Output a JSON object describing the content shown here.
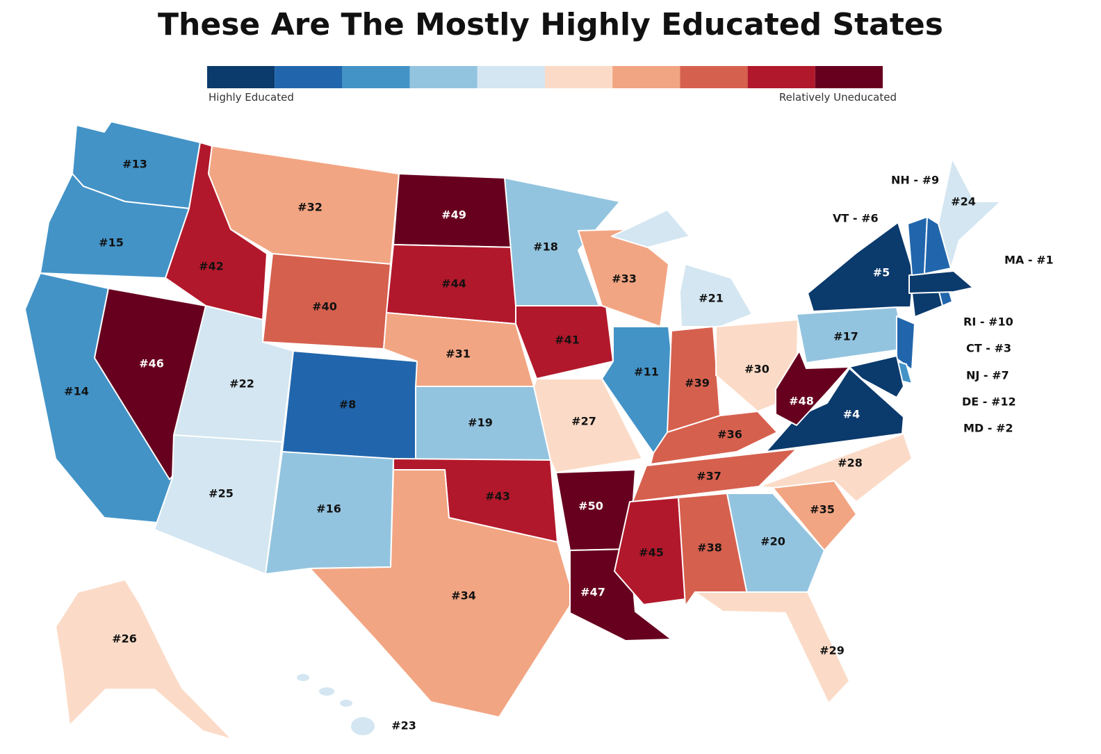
{
  "title": "These Are The Mostly Highly Educated States",
  "legend": {
    "colors": [
      "#0b3a6c",
      "#2166ac",
      "#4393c7",
      "#93c4df",
      "#d3e6f1",
      "#fbdbc7",
      "#f2a582",
      "#d6604e",
      "#b2182b",
      "#67001f"
    ],
    "low_label": "Highly Educated",
    "high_label": "Relatively Uneducated"
  },
  "states": [
    {
      "label": "#13",
      "color": "#4393c7"
    },
    {
      "label": "#15",
      "color": "#4393c7"
    },
    {
      "label": "#14",
      "color": "#4393c7"
    },
    {
      "label": "#46",
      "color": "#67001f"
    },
    {
      "label": "#42",
      "color": "#b2182b"
    },
    {
      "label": "#32",
      "color": "#f2a582"
    },
    {
      "label": "#40",
      "color": "#d6604e"
    },
    {
      "label": "#22",
      "color": "#d3e6f1"
    },
    {
      "label": "#8",
      "color": "#2166ac"
    },
    {
      "label": "#25",
      "color": "#d3e6f1"
    },
    {
      "label": "#16",
      "color": "#93c4df"
    },
    {
      "label": "#49",
      "color": "#67001f"
    },
    {
      "label": "#44",
      "color": "#b2182b"
    },
    {
      "label": "#31",
      "color": "#f2a582"
    },
    {
      "label": "#19",
      "color": "#93c4df"
    },
    {
      "label": "#43",
      "color": "#b2182b"
    },
    {
      "label": "#34",
      "color": "#f2a582"
    },
    {
      "label": "#18",
      "color": "#93c4df"
    },
    {
      "label": "#41",
      "color": "#b2182b"
    },
    {
      "label": "#27",
      "color": "#fbdbc7"
    },
    {
      "label": "#50",
      "color": "#67001f"
    },
    {
      "label": "#47",
      "color": "#67001f"
    },
    {
      "label": "#33",
      "color": "#f2a582"
    },
    {
      "label": "#11",
      "color": "#4393c7"
    },
    {
      "label": "#21",
      "color": "#d3e6f1"
    },
    {
      "label": "#39",
      "color": "#d6604e"
    },
    {
      "label": "#30",
      "color": "#fbdbc7"
    },
    {
      "label": "#36",
      "color": "#d6604e"
    },
    {
      "label": "#37",
      "color": "#d6604e"
    },
    {
      "label": "#45",
      "color": "#b2182b"
    },
    {
      "label": "#38",
      "color": "#d6604e"
    },
    {
      "label": "#20",
      "color": "#93c4df"
    },
    {
      "label": "#29",
      "color": "#fbdbc7"
    },
    {
      "label": "#35",
      "color": "#f2a582"
    },
    {
      "label": "#28",
      "color": "#fbdbc7"
    },
    {
      "label": "#4",
      "color": "#0b3a6c"
    },
    {
      "label": "#48",
      "color": "#67001f"
    },
    {
      "label": "#17",
      "color": "#93c4df"
    },
    {
      "label": "#5",
      "color": "#0b3a6c"
    },
    {
      "label": "NJ - #7",
      "color": "#2166ac"
    },
    {
      "label": "DE - #12",
      "color": "#4393c7"
    },
    {
      "label": "MD - #2",
      "color": "#0b3a6c"
    },
    {
      "label": "CT - #3",
      "color": "#0b3a6c"
    },
    {
      "label": "RI - #10",
      "color": "#2166ac"
    },
    {
      "label": "MA - #1",
      "color": "#0b3a6c"
    },
    {
      "label": "VT - #6",
      "color": "#2166ac"
    },
    {
      "label": "NH - #9",
      "color": "#2166ac"
    },
    {
      "label": "#24",
      "color": "#d3e6f1"
    },
    {
      "label": "#26",
      "color": "#fbdbc7"
    },
    {
      "label": "#23",
      "color": "#d3e6f1"
    }
  ]
}
